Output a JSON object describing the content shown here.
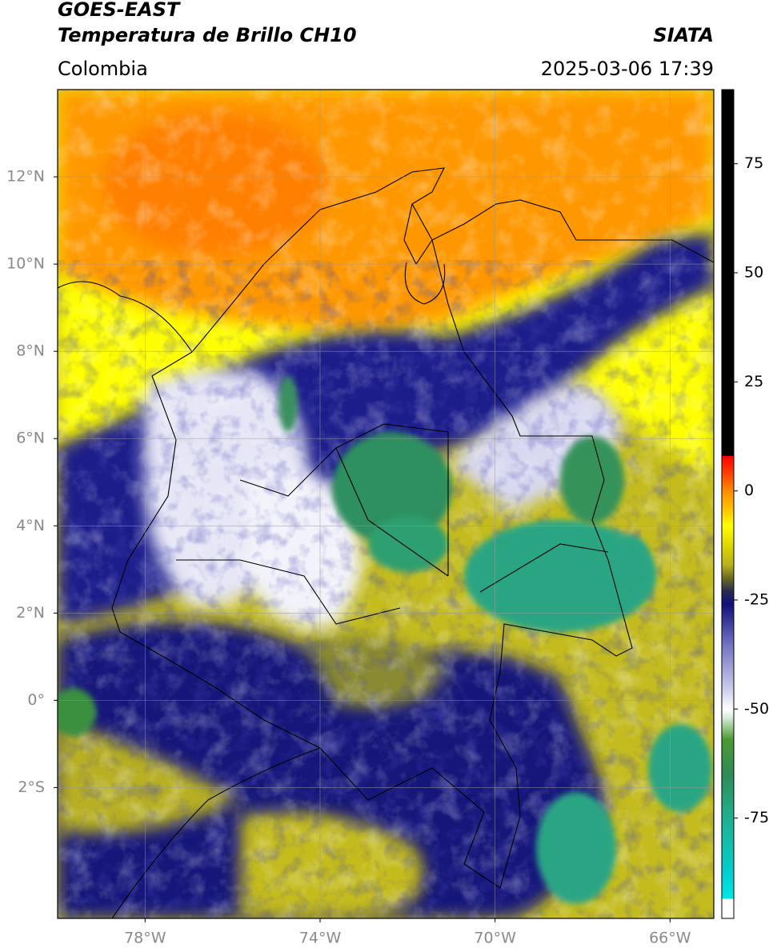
{
  "header": {
    "title": "GOES-EAST",
    "subtitle": "Temperatura de Brillo CH10",
    "source": "SIATA",
    "region": "Colombia",
    "datetime": "2025-03-06 17:39"
  },
  "map": {
    "xlim": [
      -80,
      -65
    ],
    "ylim": [
      -5,
      14
    ],
    "xticks": [
      {
        "value": -78,
        "label": "78°W"
      },
      {
        "value": -74,
        "label": "74°W"
      },
      {
        "value": -70,
        "label": "70°W"
      },
      {
        "value": -66,
        "label": "66°W"
      }
    ],
    "yticks": [
      {
        "value": 12,
        "label": "12°N"
      },
      {
        "value": 10,
        "label": "10°N"
      },
      {
        "value": 8,
        "label": "8°N"
      },
      {
        "value": 6,
        "label": "6°N"
      },
      {
        "value": 4,
        "label": "4°N"
      },
      {
        "value": 2,
        "label": "2°N"
      },
      {
        "value": 0,
        "label": "0°"
      },
      {
        "value": -2,
        "label": "2°S"
      }
    ],
    "grid": true
  },
  "colorbar": {
    "lim": [
      -98,
      92
    ],
    "ticks": [
      75,
      50,
      25,
      0,
      -25,
      -50,
      -75
    ],
    "stops": [
      {
        "value": -98,
        "color": "#ffffff"
      },
      {
        "value": -93.5,
        "color": "#ffffff"
      },
      {
        "value": -93.5,
        "color": "#00e8e8"
      },
      {
        "value": -88,
        "color": "#00d0d0"
      },
      {
        "value": -75,
        "color": "#20b090"
      },
      {
        "value": -65,
        "color": "#2e8b57"
      },
      {
        "value": -57,
        "color": "#4a9a30"
      },
      {
        "value": -52,
        "color": "#d8ecd8"
      },
      {
        "value": -50,
        "color": "#ffffff"
      },
      {
        "value": -45,
        "color": "#c8c8ec"
      },
      {
        "value": -35,
        "color": "#7070c0"
      },
      {
        "value": -26,
        "color": "#10107a"
      },
      {
        "value": -23,
        "color": "#2a2a50"
      },
      {
        "value": -20,
        "color": "#6a6a20"
      },
      {
        "value": -17,
        "color": "#b8b020"
      },
      {
        "value": -13,
        "color": "#dcd200"
      },
      {
        "value": -8,
        "color": "#ffff00"
      },
      {
        "value": -4,
        "color": "#ffc000"
      },
      {
        "value": 0,
        "color": "#ff8c00"
      },
      {
        "value": 4,
        "color": "#ff4000"
      },
      {
        "value": 8,
        "color": "#ff0000"
      },
      {
        "value": 8,
        "color": "#000000"
      },
      {
        "value": 92,
        "color": "#000000"
      }
    ]
  }
}
